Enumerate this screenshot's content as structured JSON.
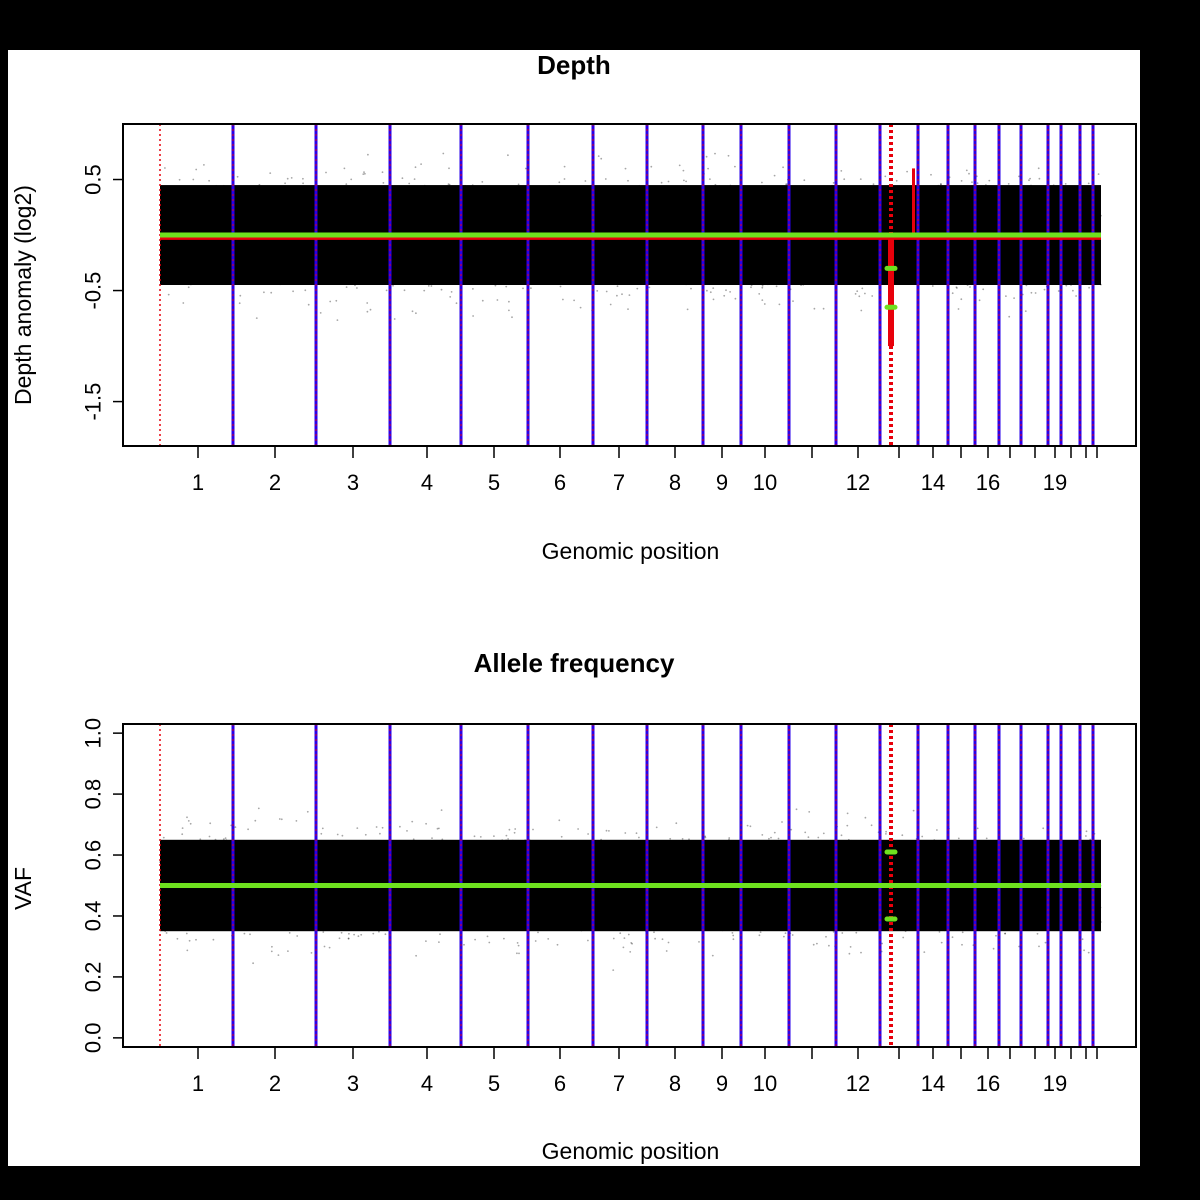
{
  "chart_data": [
    {
      "type": "scatter",
      "title": "Depth",
      "xlabel": "Genomic position",
      "ylabel": "Depth anomaly (log2)",
      "ylim": [
        -1.9,
        1.0
      ],
      "yticks": [
        "0.5",
        "-0.5",
        "-1.5"
      ],
      "ytick_values": [
        0.5,
        -0.5,
        -1.5
      ],
      "xtick_labels": [
        "1",
        "2",
        "3",
        "4",
        "5",
        "6",
        "7",
        "8",
        "9",
        "10",
        "12",
        "14",
        "16",
        "19"
      ],
      "point_band": {
        "center": 0.0,
        "core_halfwidth": 0.45,
        "spread_max": 0.9
      },
      "segment_level": 0.0,
      "segment_color": "#6ee01e",
      "point_color": "#000000",
      "chrom_line_color": "#2a00e8",
      "highlight_color": "#e8000b",
      "annotations": [
        {
          "label": "",
          "chromosome": 13,
          "y": -0.3
        },
        {
          "label": "",
          "chromosome": 13,
          "y": -0.65
        }
      ]
    },
    {
      "type": "scatter",
      "title": "Allele frequency",
      "xlabel": "Genomic position",
      "ylabel": "VAF",
      "ylim": [
        -0.03,
        1.03
      ],
      "yticks": [
        "0.0",
        "0.2",
        "0.4",
        "0.6",
        "0.8",
        "1.0"
      ],
      "ytick_values": [
        0.0,
        0.2,
        0.4,
        0.6,
        0.8,
        1.0
      ],
      "xtick_labels": [
        "1",
        "2",
        "3",
        "4",
        "5",
        "6",
        "7",
        "8",
        "9",
        "10",
        "12",
        "14",
        "16",
        "19"
      ],
      "point_band": {
        "center": 0.5,
        "core_halfwidth": 0.15,
        "spread_max": 0.3
      },
      "segment_level": 0.5,
      "segment_color": "#6ee01e",
      "point_color": "#000000",
      "chrom_line_color": "#2a00e8",
      "highlight_color": "#e8000b",
      "annotations": [
        {
          "label": "",
          "chromosome": 13,
          "y": 0.61
        },
        {
          "label": "",
          "chromosome": 13,
          "y": 0.39
        }
      ]
    }
  ]
}
